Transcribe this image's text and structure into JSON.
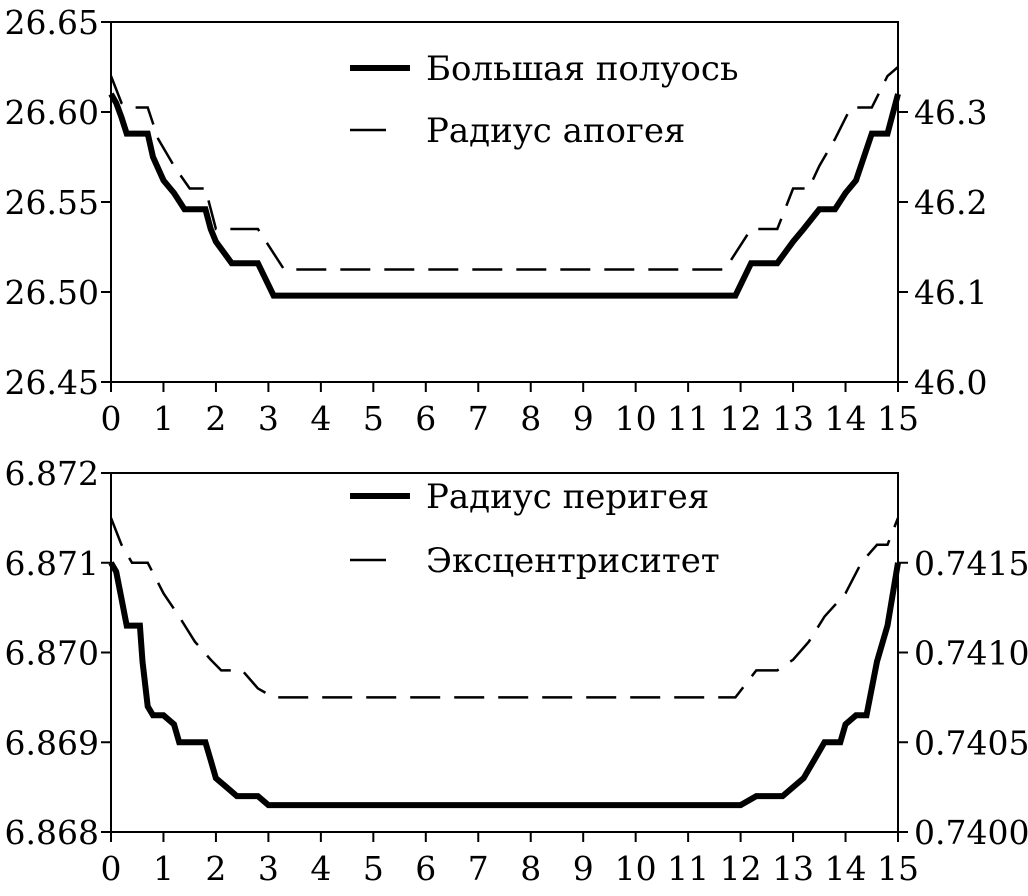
{
  "chart_data": [
    {
      "type": "line",
      "x_ticks": [
        "0",
        "1",
        "2",
        "3",
        "4",
        "5",
        "6",
        "7",
        "8",
        "9",
        "10",
        "11",
        "12",
        "13",
        "14",
        "15"
      ],
      "xlim": [
        0,
        15
      ],
      "y_left": {
        "lim": [
          26.45,
          26.65
        ],
        "ticks": [
          "26.45",
          "26.50",
          "26.55",
          "26.60",
          "26.65"
        ]
      },
      "y_right": {
        "lim": [
          46.0,
          46.4
        ],
        "ticks": [
          "46.0",
          "46.1",
          "46.2",
          "46.3"
        ]
      },
      "grid": false,
      "legend_position": "top-center",
      "series": [
        {
          "name": "Большая полуось",
          "axis": "left",
          "style": "solid-thick",
          "x": [
            0,
            0.1,
            0.2,
            0.3,
            0.7,
            0.8,
            1.0,
            1.2,
            1.4,
            1.5,
            1.8,
            1.9,
            2.0,
            2.3,
            2.8,
            3.1,
            11.9,
            12.2,
            12.7,
            13.0,
            13.2,
            13.5,
            13.8,
            14.0,
            14.2,
            14.5,
            14.8,
            15.0
          ],
          "y": [
            26.61,
            26.605,
            26.597,
            26.588,
            26.588,
            26.575,
            26.562,
            26.555,
            26.546,
            26.546,
            26.546,
            26.535,
            26.528,
            26.516,
            26.516,
            26.498,
            26.498,
            26.516,
            26.516,
            26.528,
            26.535,
            26.546,
            26.546,
            26.555,
            26.562,
            26.588,
            26.588,
            26.61
          ]
        },
        {
          "name": "Радиус апогея",
          "axis": "right",
          "style": "dashed",
          "x": [
            0,
            0.2,
            0.4,
            0.7,
            0.9,
            1.2,
            1.5,
            1.8,
            2.0,
            2.3,
            2.8,
            3.3,
            11.7,
            12.2,
            12.7,
            13.0,
            13.3,
            13.5,
            13.8,
            14.1,
            14.5,
            14.8,
            15.0
          ],
          "y": [
            46.34,
            46.31,
            46.305,
            46.305,
            46.27,
            46.24,
            46.215,
            46.215,
            46.17,
            46.17,
            46.17,
            46.125,
            46.125,
            46.17,
            46.17,
            46.215,
            46.215,
            46.24,
            46.27,
            46.305,
            46.305,
            46.34,
            46.35
          ]
        }
      ]
    },
    {
      "type": "line",
      "x_ticks": [
        "0",
        "1",
        "2",
        "3",
        "4",
        "5",
        "6",
        "7",
        "8",
        "9",
        "10",
        "11",
        "12",
        "13",
        "14",
        "15"
      ],
      "xlim": [
        0,
        15
      ],
      "y_left": {
        "lim": [
          6.868,
          6.872
        ],
        "ticks": [
          "6.868",
          "6.869",
          "6.870",
          "6.871",
          "6.872"
        ]
      },
      "y_right": {
        "lim": [
          0.74,
          0.742
        ],
        "ticks": [
          "0.7400",
          "0.7405",
          "0.7410",
          "0.7415"
        ]
      },
      "grid": false,
      "legend_position": "top-center",
      "series": [
        {
          "name": "Радиус перигея",
          "axis": "left",
          "style": "solid-thick",
          "x": [
            0,
            0.1,
            0.2,
            0.3,
            0.55,
            0.6,
            0.7,
            0.8,
            1.0,
            1.2,
            1.3,
            1.6,
            1.8,
            1.9,
            2.0,
            2.2,
            2.4,
            2.8,
            3.0,
            3.3,
            11.7,
            12.0,
            12.3,
            12.8,
            13.0,
            13.2,
            13.4,
            13.6,
            13.7,
            13.9,
            14.0,
            14.2,
            14.4,
            14.6,
            14.8,
            15.0
          ],
          "y": [
            6.871,
            6.8709,
            6.8706,
            6.8703,
            6.8703,
            6.8699,
            6.8694,
            6.8693,
            6.8693,
            6.8692,
            6.869,
            6.869,
            6.869,
            6.8688,
            6.8686,
            6.8685,
            6.8684,
            6.8684,
            6.8683,
            6.8683,
            6.8683,
            6.8683,
            6.8684,
            6.8684,
            6.8685,
            6.8686,
            6.8688,
            6.869,
            6.869,
            6.869,
            6.8692,
            6.8693,
            6.8693,
            6.8699,
            6.8703,
            6.871
          ]
        },
        {
          "name": "Эксцентриситет",
          "axis": "right",
          "style": "dashed",
          "x": [
            0,
            0.2,
            0.4,
            0.7,
            1.0,
            1.3,
            1.6,
            1.9,
            2.1,
            2.5,
            2.8,
            3.1,
            11.9,
            12.3,
            12.7,
            13.0,
            13.3,
            13.6,
            14.0,
            14.3,
            14.6,
            14.8,
            15.0
          ],
          "y": [
            0.74175,
            0.7416,
            0.7415,
            0.7415,
            0.74133,
            0.7412,
            0.74106,
            0.74096,
            0.7409,
            0.7409,
            0.7408,
            0.74075,
            0.74075,
            0.7409,
            0.7409,
            0.74096,
            0.74106,
            0.7412,
            0.74133,
            0.7415,
            0.7416,
            0.7416,
            0.74175
          ]
        }
      ]
    }
  ]
}
